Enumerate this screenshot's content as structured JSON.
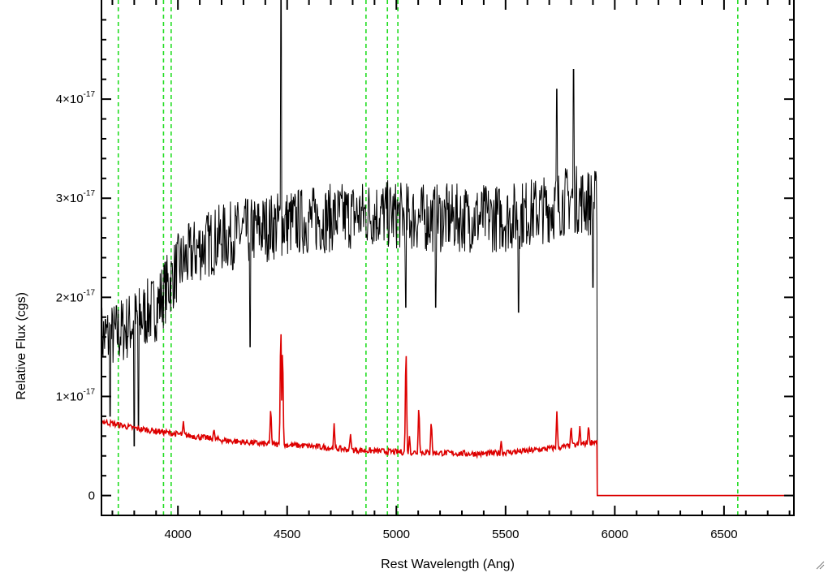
{
  "chart_data": {
    "type": "line",
    "xlabel": "Rest Wavelength (Ang)",
    "ylabel": "Relative Flux (cgs)",
    "xlim": [
      3650,
      6820
    ],
    "ylim": [
      -2e-18,
      5e-17
    ],
    "x_ticks": [
      {
        "value": 4000,
        "label": "4000"
      },
      {
        "value": 4500,
        "label": "4500"
      },
      {
        "value": 5000,
        "label": "5000"
      },
      {
        "value": 5500,
        "label": "5500"
      },
      {
        "value": 6000,
        "label": "6000"
      },
      {
        "value": 6500,
        "label": "6500"
      }
    ],
    "y_ticks": [
      {
        "value": 0,
        "mantissa": "0",
        "exp": ""
      },
      {
        "value": 1e-17,
        "mantissa": "1×10",
        "exp": "-17"
      },
      {
        "value": 2e-17,
        "mantissa": "2×10",
        "exp": "-17"
      },
      {
        "value": 3e-17,
        "mantissa": "3×10",
        "exp": "-17"
      },
      {
        "value": 4e-17,
        "mantissa": "4×10",
        "exp": "-17"
      }
    ],
    "reference_lines": {
      "color": "#22dd22",
      "style": "dashed",
      "x": [
        3727,
        3934,
        3969,
        4861,
        4959,
        5007,
        6563
      ]
    },
    "series": [
      {
        "color": "#000000",
        "x_range": [
          3650,
          5920
        ],
        "anchors": [
          [
            3650,
            1.6e-17
          ],
          [
            3700,
            1.6e-17
          ],
          [
            3800,
            1.75e-17
          ],
          [
            3900,
            1.9e-17
          ],
          [
            4000,
            2.3e-17
          ],
          [
            4100,
            2.5e-17
          ],
          [
            4200,
            2.6e-17
          ],
          [
            4300,
            2.65e-17
          ],
          [
            4400,
            2.7e-17
          ],
          [
            4500,
            2.75e-17
          ],
          [
            4700,
            2.8e-17
          ],
          [
            4900,
            2.85e-17
          ],
          [
            5100,
            2.8e-17
          ],
          [
            5300,
            2.8e-17
          ],
          [
            5500,
            2.8e-17
          ],
          [
            5700,
            2.9e-17
          ],
          [
            5800,
            3e-17
          ],
          [
            5900,
            2.95e-17
          ]
        ],
        "features": [
          [
            4471,
            5.2e-17
          ],
          [
            5044,
            1.9e-17
          ],
          [
            5812,
            4.3e-17
          ],
          [
            5735,
            4.1e-17
          ],
          [
            3690,
            8e-18
          ],
          [
            3800,
            5e-18
          ],
          [
            3820,
            7e-18
          ],
          [
            4330,
            1.5e-17
          ],
          [
            5180,
            1.9e-17
          ],
          [
            5560,
            1.85e-17
          ],
          [
            5900,
            2.1e-17
          ]
        ],
        "noise": 3.5e-18,
        "after_end_value": 0
      },
      {
        "color": "#dd0000",
        "x_range": [
          3650,
          5920
        ],
        "anchors": [
          [
            3650,
            7.5e-18
          ],
          [
            3800,
            6.8e-18
          ],
          [
            4000,
            6.2e-18
          ],
          [
            4200,
            5.6e-18
          ],
          [
            4400,
            5.2e-18
          ],
          [
            4600,
            5e-18
          ],
          [
            4800,
            4.6e-18
          ],
          [
            5000,
            4.4e-18
          ],
          [
            5200,
            4.3e-18
          ],
          [
            5400,
            4.2e-18
          ],
          [
            5600,
            4.5e-18
          ],
          [
            5800,
            5e-18
          ],
          [
            5920,
            5.5e-18
          ]
        ],
        "peaks": [
          [
            4025,
            7.5e-18
          ],
          [
            4165,
            6.8e-18
          ],
          [
            4425,
            9.2e-18
          ],
          [
            4471,
            1.85e-17
          ],
          [
            4479,
            1.6e-17
          ],
          [
            4715,
            7.3e-18
          ],
          [
            4790,
            6.2e-18
          ],
          [
            5044,
            1.6e-17
          ],
          [
            5060,
            6e-18
          ],
          [
            5103,
            9.5e-18
          ],
          [
            5160,
            7.8e-18
          ],
          [
            5480,
            5.5e-18
          ],
          [
            5735,
            8.5e-18
          ],
          [
            5800,
            7.2e-18
          ],
          [
            5840,
            7e-18
          ],
          [
            5880,
            7.2e-18
          ]
        ],
        "noise": 3e-19,
        "after_end_value": 0
      }
    ],
    "grid": false,
    "legend": "none"
  }
}
